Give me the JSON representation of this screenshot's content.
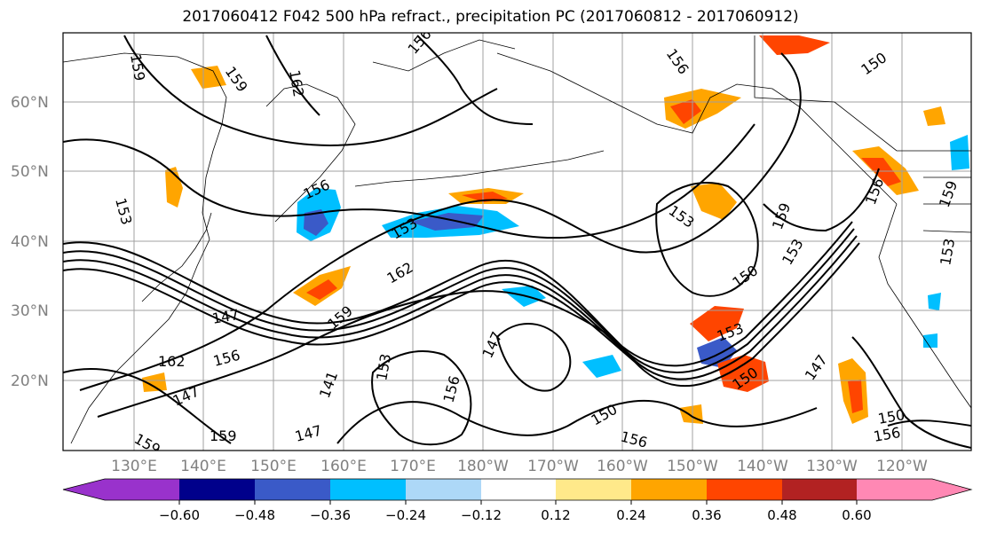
{
  "title": "2017060412 F042 500 hPa refract., precipitation PC (2017060812 - 2017060912)",
  "lat_labels": [
    "60°N",
    "50°N",
    "40°N",
    "30°N",
    "20°N"
  ],
  "lon_labels": [
    "130°E",
    "140°E",
    "150°E",
    "160°E",
    "170°E",
    "180°W",
    "170°W",
    "160°W",
    "150°W",
    "140°W",
    "130°W",
    "120°W"
  ],
  "contour_labels": [
    "159",
    "162",
    "159",
    "156",
    "156",
    "150",
    "156",
    "153",
    "153",
    "156",
    "159",
    "153",
    "162",
    "159",
    "147",
    "162",
    "156",
    "147",
    "159",
    "159",
    "147",
    "141",
    "153",
    "156",
    "147",
    "150",
    "156",
    "150",
    "153",
    "150",
    "147",
    "150",
    "156",
    "153",
    "159",
    "153"
  ],
  "colorbar": {
    "colors": [
      "#9932CC",
      "#00008B",
      "#3A5AC8",
      "#00BFFF",
      "#ADD8F7",
      "#FFFFFF",
      "#FFE98A",
      "#FFA500",
      "#FF4500",
      "#B22222",
      "#FF88B4"
    ],
    "tick_labels": [
      "−0.60",
      "−0.48",
      "−0.36",
      "−0.24",
      "−0.12",
      "0.12",
      "0.24",
      "0.36",
      "0.48",
      "0.60"
    ]
  },
  "colors": {
    "frame": "#000000",
    "grid": "#a0a0a0",
    "contour": "#000000",
    "axis_label": "#808080"
  }
}
